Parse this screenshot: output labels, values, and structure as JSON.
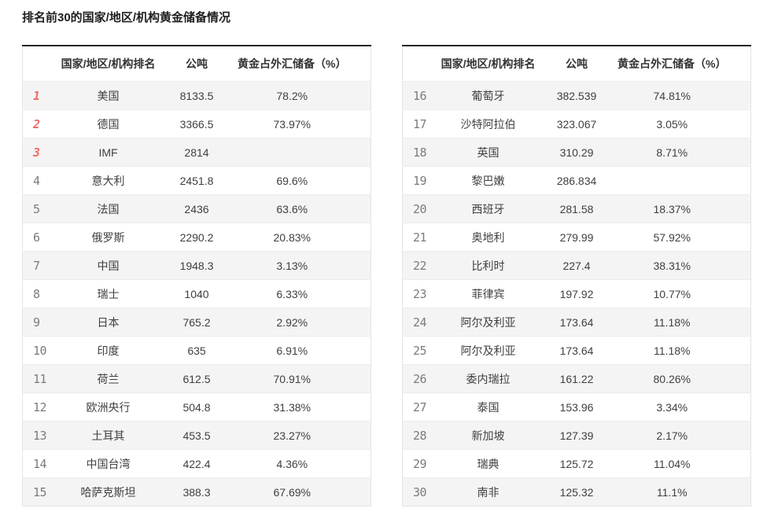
{
  "title": "排名前30的国家/地区/机构黄金储备情况",
  "colors": {
    "rank_top3": "#ee6b66",
    "rank_normal": "#7b7b7b",
    "row_stripe": "#f4f4f5",
    "table_top_border": "#262626",
    "body_text": "#3f3f3f"
  },
  "chart_data": [
    {
      "type": "table",
      "title": "排名前30的国家/地区/机构黄金储备情况（1-15）",
      "columns": [
        "国家/地区/机构排名",
        "公吨",
        "黄金占外汇储备（%）"
      ],
      "rows": [
        {
          "rank": "1",
          "name": "美国",
          "tons": "8133.5",
          "pct": "78.2%"
        },
        {
          "rank": "2",
          "name": "德国",
          "tons": "3366.5",
          "pct": "73.97%"
        },
        {
          "rank": "3",
          "name": "IMF",
          "tons": "2814",
          "pct": ""
        },
        {
          "rank": "4",
          "name": "意大利",
          "tons": "2451.8",
          "pct": "69.6%"
        },
        {
          "rank": "5",
          "name": "法国",
          "tons": "2436",
          "pct": "63.6%"
        },
        {
          "rank": "6",
          "name": "俄罗斯",
          "tons": "2290.2",
          "pct": "20.83%"
        },
        {
          "rank": "7",
          "name": "中国",
          "tons": "1948.3",
          "pct": "3.13%"
        },
        {
          "rank": "8",
          "name": "瑞士",
          "tons": "1040",
          "pct": "6.33%"
        },
        {
          "rank": "9",
          "name": "日本",
          "tons": "765.2",
          "pct": "2.92%"
        },
        {
          "rank": "10",
          "name": "印度",
          "tons": "635",
          "pct": "6.91%"
        },
        {
          "rank": "11",
          "name": "荷兰",
          "tons": "612.5",
          "pct": "70.91%"
        },
        {
          "rank": "12",
          "name": "欧洲央行",
          "tons": "504.8",
          "pct": "31.38%"
        },
        {
          "rank": "13",
          "name": "土耳其",
          "tons": "453.5",
          "pct": "23.27%"
        },
        {
          "rank": "14",
          "name": "中国台湾",
          "tons": "422.4",
          "pct": "4.36%"
        },
        {
          "rank": "15",
          "name": "哈萨克斯坦",
          "tons": "388.3",
          "pct": "67.69%"
        }
      ]
    },
    {
      "type": "table",
      "title": "排名前30的国家/地区/机构黄金储备情况（16-30）",
      "columns": [
        "国家/地区/机构排名",
        "公吨",
        "黄金占外汇储备（%）"
      ],
      "rows": [
        {
          "rank": "16",
          "name": "葡萄牙",
          "tons": "382.539",
          "pct": "74.81%"
        },
        {
          "rank": "17",
          "name": "沙特阿拉伯",
          "tons": "323.067",
          "pct": "3.05%"
        },
        {
          "rank": "18",
          "name": "英国",
          "tons": "310.29",
          "pct": "8.71%"
        },
        {
          "rank": "19",
          "name": "黎巴嫩",
          "tons": "286.834",
          "pct": ""
        },
        {
          "rank": "20",
          "name": "西班牙",
          "tons": "281.58",
          "pct": "18.37%"
        },
        {
          "rank": "21",
          "name": "奥地利",
          "tons": "279.99",
          "pct": "57.92%"
        },
        {
          "rank": "22",
          "name": "比利时",
          "tons": "227.4",
          "pct": "38.31%"
        },
        {
          "rank": "23",
          "name": "菲律宾",
          "tons": "197.92",
          "pct": "10.77%"
        },
        {
          "rank": "24",
          "name": "阿尔及利亚",
          "tons": "173.64",
          "pct": "11.18%"
        },
        {
          "rank": "25",
          "name": "阿尔及利亚",
          "tons": "173.64",
          "pct": "11.18%"
        },
        {
          "rank": "26",
          "name": "委内瑞拉",
          "tons": "161.22",
          "pct": "80.26%"
        },
        {
          "rank": "27",
          "name": "泰国",
          "tons": "153.96",
          "pct": "3.34%"
        },
        {
          "rank": "28",
          "name": "新加坡",
          "tons": "127.39",
          "pct": "2.17%"
        },
        {
          "rank": "29",
          "name": "瑞典",
          "tons": "125.72",
          "pct": "11.04%"
        },
        {
          "rank": "30",
          "name": "南非",
          "tons": "125.32",
          "pct": "11.1%"
        }
      ]
    }
  ]
}
